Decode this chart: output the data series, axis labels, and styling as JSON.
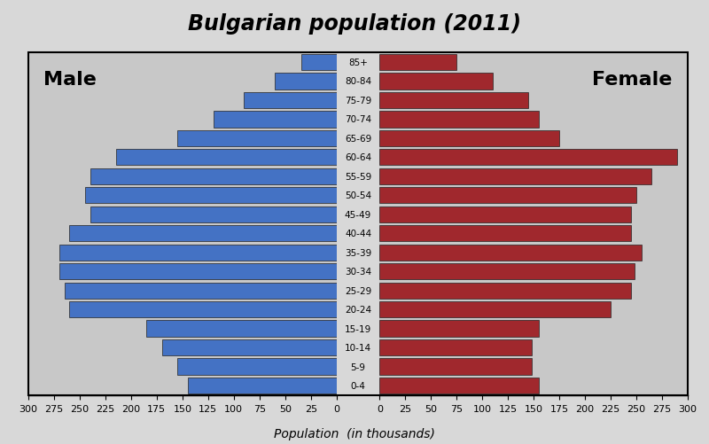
{
  "title": "Bulgarian population (2011)",
  "age_groups": [
    "0-4",
    "5-9",
    "10-14",
    "15-19",
    "20-24",
    "25-29",
    "30-34",
    "35-39",
    "40-44",
    "45-49",
    "50-54",
    "55-59",
    "60-64",
    "65-69",
    "70-74",
    "75-79",
    "80-84",
    "85+"
  ],
  "male": [
    145,
    155,
    170,
    185,
    260,
    265,
    270,
    270,
    260,
    240,
    245,
    240,
    215,
    155,
    120,
    90,
    60,
    34
  ],
  "female": [
    155,
    148,
    148,
    155,
    225,
    245,
    248,
    255,
    245,
    245,
    250,
    265,
    290,
    175,
    155,
    145,
    110,
    75
  ],
  "male_color": "#4472C4",
  "female_color": "#A0282D",
  "background_color": "#C8C8C8",
  "xlim": 300,
  "xticks_male": [
    300,
    275,
    250,
    225,
    200,
    175,
    150,
    125,
    100,
    75,
    50,
    25,
    0
  ],
  "xticks_female": [
    0,
    25,
    50,
    75,
    100,
    125,
    150,
    175,
    200,
    225,
    250,
    275,
    300
  ],
  "xlabel": "Population  (in thousands)",
  "male_label": "Male",
  "female_label": "Female",
  "bar_edge_color": "#222222",
  "bar_linewidth": 0.5,
  "outer_bg": "#D8D8D8",
  "panel_bg": "#C8C8C8"
}
